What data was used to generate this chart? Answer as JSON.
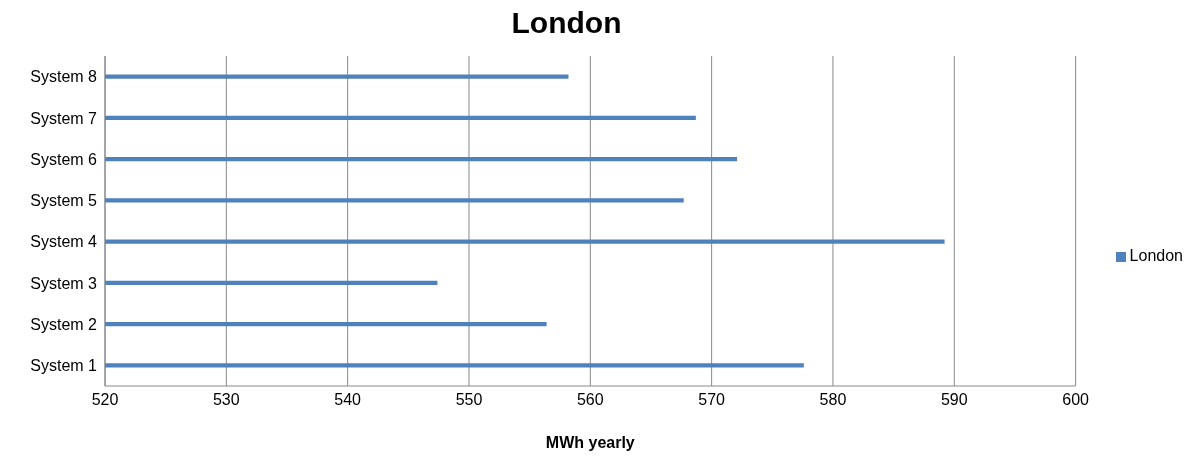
{
  "chart_data": {
    "type": "bar",
    "orientation": "horizontal",
    "title": "London",
    "xlabel": "MWh yearly",
    "categories": [
      "System 8",
      "System 7",
      "System 6",
      "System 5",
      "System 4",
      "System 3",
      "System 2",
      "System 1"
    ],
    "series": [
      {
        "name": "London",
        "color": "#4f81bd",
        "values": [
          558.2,
          568.7,
          572.1,
          567.7,
          589.2,
          547.4,
          556.4,
          577.6
        ]
      }
    ],
    "xlim": [
      520,
      600
    ],
    "xticks": [
      520,
      530,
      540,
      550,
      560,
      570,
      580,
      590,
      600
    ],
    "grid": "x",
    "legend": "right"
  }
}
